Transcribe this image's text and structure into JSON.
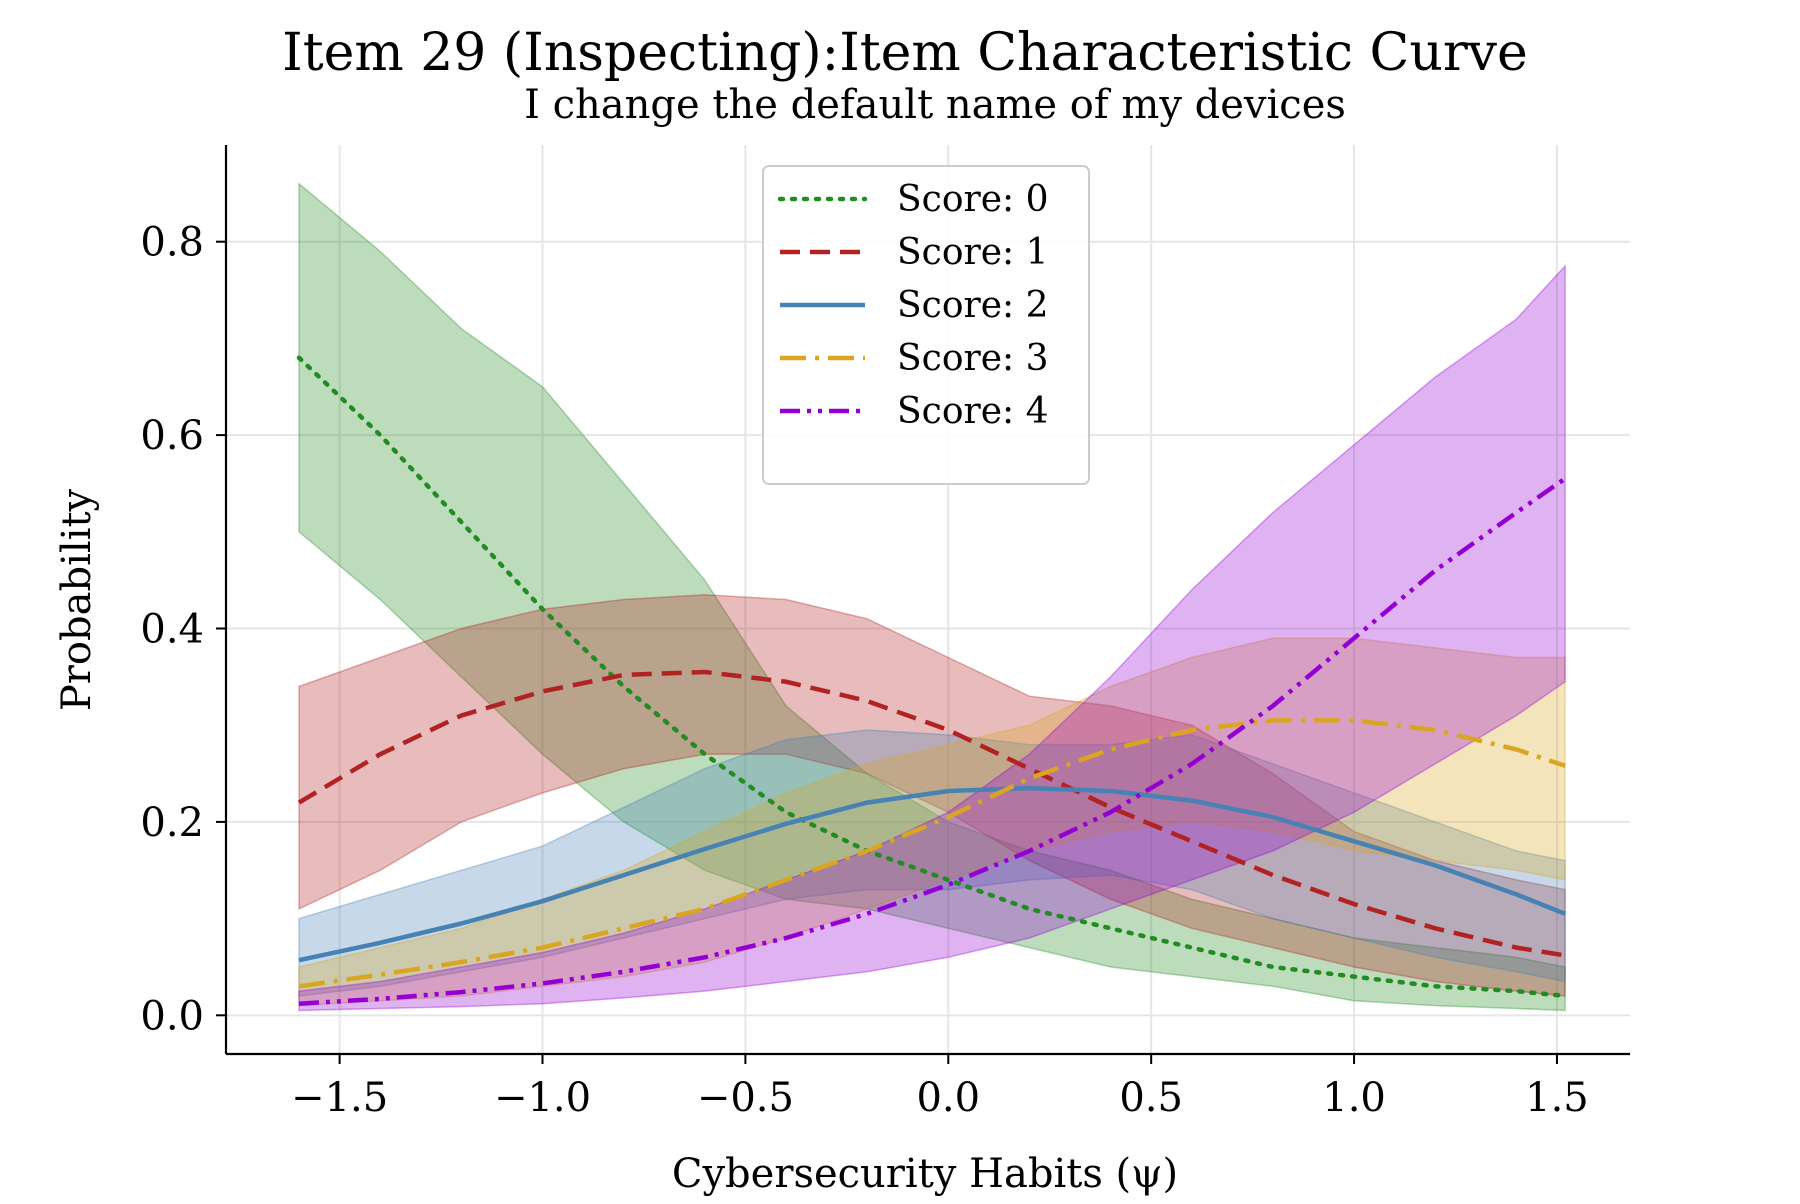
{
  "chart_data": {
    "type": "line",
    "title": "Item 29 (Inspecting):Item Characteristic Curve",
    "subtitle": "I change the default name of my devices",
    "xlabel": "Cybersecurity Habits (ψ)",
    "ylabel": "Probability",
    "xlim": [
      -1.78,
      1.68
    ],
    "ylim": [
      -0.04,
      0.9
    ],
    "xticks": [
      -1.5,
      -1.0,
      -0.5,
      0.0,
      0.5,
      1.0,
      1.5
    ],
    "xtick_labels": [
      "−1.5",
      "−1.0",
      "−0.5",
      "0.0",
      "0.5",
      "1.0",
      "1.5"
    ],
    "yticks": [
      0.0,
      0.2,
      0.4,
      0.6,
      0.8
    ],
    "ytick_labels": [
      "0.0",
      "0.2",
      "0.4",
      "0.6",
      "0.8"
    ],
    "grid": true,
    "legend_position": "top-center",
    "x": [
      -1.6,
      -1.4,
      -1.2,
      -1.0,
      -0.8,
      -0.6,
      -0.4,
      -0.2,
      0.0,
      0.2,
      0.4,
      0.6,
      0.8,
      1.0,
      1.2,
      1.4,
      1.52
    ],
    "series": [
      {
        "name": "Score: 0",
        "color": "#228B22",
        "style": "dotted",
        "values": [
          0.68,
          0.6,
          0.51,
          0.42,
          0.34,
          0.27,
          0.21,
          0.17,
          0.14,
          0.11,
          0.09,
          0.07,
          0.05,
          0.04,
          0.03,
          0.025,
          0.02
        ],
        "lower": [
          0.5,
          0.43,
          0.35,
          0.27,
          0.2,
          0.15,
          0.12,
          0.11,
          0.09,
          0.07,
          0.05,
          0.04,
          0.03,
          0.015,
          0.01,
          0.007,
          0.005
        ],
        "upper": [
          0.86,
          0.79,
          0.71,
          0.65,
          0.55,
          0.45,
          0.32,
          0.25,
          0.2,
          0.17,
          0.15,
          0.12,
          0.1,
          0.08,
          0.07,
          0.06,
          0.05
        ]
      },
      {
        "name": "Score: 1",
        "color": "#B22222",
        "style": "dashed",
        "values": [
          0.22,
          0.27,
          0.31,
          0.335,
          0.352,
          0.355,
          0.345,
          0.325,
          0.295,
          0.255,
          0.215,
          0.18,
          0.145,
          0.115,
          0.09,
          0.07,
          0.062
        ],
        "lower": [
          0.11,
          0.15,
          0.2,
          0.23,
          0.255,
          0.27,
          0.27,
          0.25,
          0.21,
          0.16,
          0.12,
          0.09,
          0.07,
          0.05,
          0.035,
          0.025,
          0.02
        ],
        "upper": [
          0.34,
          0.37,
          0.4,
          0.42,
          0.43,
          0.435,
          0.43,
          0.41,
          0.37,
          0.33,
          0.32,
          0.3,
          0.25,
          0.19,
          0.16,
          0.14,
          0.13
        ]
      },
      {
        "name": "Score: 2",
        "color": "#4682B4",
        "style": "solid",
        "values": [
          0.057,
          0.075,
          0.095,
          0.118,
          0.145,
          0.172,
          0.198,
          0.22,
          0.232,
          0.235,
          0.232,
          0.222,
          0.205,
          0.18,
          0.155,
          0.125,
          0.105
        ],
        "lower": [
          0.02,
          0.03,
          0.045,
          0.06,
          0.08,
          0.1,
          0.12,
          0.13,
          0.13,
          0.14,
          0.145,
          0.13,
          0.1,
          0.08,
          0.06,
          0.045,
          0.035
        ],
        "upper": [
          0.1,
          0.125,
          0.15,
          0.175,
          0.215,
          0.255,
          0.285,
          0.295,
          0.29,
          0.28,
          0.28,
          0.29,
          0.26,
          0.23,
          0.2,
          0.17,
          0.16
        ]
      },
      {
        "name": "Score: 3",
        "color": "#DAA520",
        "style": "dashdot",
        "values": [
          0.03,
          0.042,
          0.055,
          0.07,
          0.09,
          0.11,
          0.14,
          0.17,
          0.205,
          0.245,
          0.275,
          0.295,
          0.305,
          0.305,
          0.295,
          0.275,
          0.258
        ],
        "lower": [
          0.01,
          0.015,
          0.02,
          0.03,
          0.04,
          0.055,
          0.08,
          0.11,
          0.14,
          0.17,
          0.19,
          0.2,
          0.19,
          0.17,
          0.16,
          0.15,
          0.14
        ],
        "upper": [
          0.05,
          0.07,
          0.09,
          0.12,
          0.15,
          0.19,
          0.23,
          0.26,
          0.28,
          0.3,
          0.34,
          0.37,
          0.39,
          0.39,
          0.38,
          0.37,
          0.37
        ]
      },
      {
        "name": "Score: 4",
        "color": "#9400D3",
        "style": "dashdotdot",
        "values": [
          0.012,
          0.017,
          0.024,
          0.033,
          0.045,
          0.06,
          0.08,
          0.105,
          0.135,
          0.17,
          0.21,
          0.26,
          0.32,
          0.39,
          0.46,
          0.52,
          0.555
        ],
        "lower": [
          0.005,
          0.007,
          0.009,
          0.012,
          0.018,
          0.025,
          0.035,
          0.045,
          0.06,
          0.08,
          0.11,
          0.14,
          0.17,
          0.21,
          0.26,
          0.31,
          0.345
        ],
        "upper": [
          0.025,
          0.035,
          0.05,
          0.065,
          0.085,
          0.11,
          0.14,
          0.17,
          0.21,
          0.27,
          0.35,
          0.44,
          0.52,
          0.59,
          0.66,
          0.72,
          0.775
        ]
      }
    ]
  }
}
